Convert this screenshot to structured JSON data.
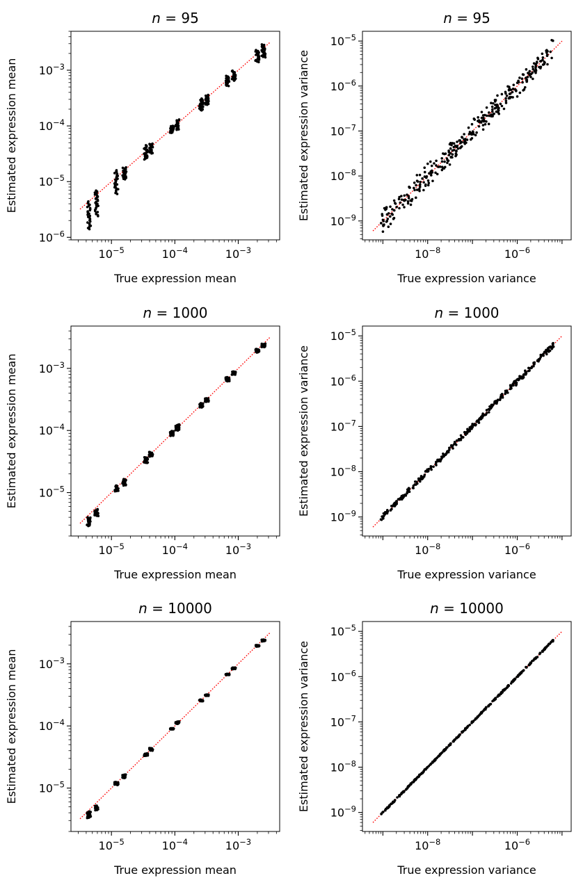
{
  "figure": {
    "titles": [
      "n = 95",
      "n = 1000",
      "n = 10000"
    ]
  },
  "chart_data": [
    {
      "type": "scatter",
      "title": "n = 95",
      "xlabel": "True expression mean",
      "ylabel": "Estimated expression mean",
      "xscale": "log",
      "yscale": "log",
      "xlim": [
        2.3e-06,
        0.0045
      ],
      "ylim": [
        9e-07,
        0.005
      ],
      "xticks": [
        "10^-5",
        "10^-4",
        "10^-3"
      ],
      "yticks": [
        "10^-6",
        "10^-5",
        "10^-4",
        "10^-3"
      ],
      "identity_line": {
        "color": "#ff0000",
        "style": "dotted",
        "from": 3.2e-06,
        "to": 0.0032
      },
      "marker_color": "#000000",
      "true_values": [
        4.4e-06,
        5.8e-06,
        1.2e-05,
        1.6e-05,
        3.5e-05,
        4.2e-05,
        9e-05,
        0.00011,
        0.00026,
        0.00032,
        0.00068,
        0.00085,
        0.002,
        0.0025
      ],
      "estimate_range": [
        [
          1.4e-06,
          4.4e-06
        ],
        [
          2.4e-06,
          6.9e-06
        ],
        [
          6e-06,
          1.6e-05
        ],
        [
          1.1e-05,
          1.8e-05
        ],
        [
          2.5e-05,
          4.5e-05
        ],
        [
          3.2e-05,
          4.8e-05
        ],
        [
          7.5e-05,
          0.0001
        ],
        [
          8.5e-05,
          0.00013
        ],
        [
          0.00019,
          0.00031
        ],
        [
          0.00024,
          0.00036
        ],
        [
          0.00052,
          0.00079
        ],
        [
          0.00065,
          0.00098
        ],
        [
          0.0014,
          0.0023
        ],
        [
          0.0017,
          0.0029
        ]
      ]
    },
    {
      "type": "scatter",
      "title": "n = 95",
      "xlabel": "True expression variance",
      "ylabel": "Estimated expression variance",
      "xscale": "log",
      "yscale": "log",
      "xlim": [
        3.5e-10,
        1.6e-05
      ],
      "ylim": [
        3.8e-10,
        1.65e-05
      ],
      "xticks": [
        "10^-8",
        "10^-6"
      ],
      "yticks": [
        "10^-9",
        "10^-8",
        "10^-7",
        "10^-6",
        "10^-5"
      ],
      "identity_line": {
        "color": "#ff0000",
        "style": "dotted",
        "from": 6e-10,
        "to": 1e-05
      },
      "marker_color": "#000000",
      "true_range": [
        9e-10,
        6.5e-06
      ],
      "log_spread": 0.28
    },
    {
      "type": "scatter",
      "title": "n = 1000",
      "xlabel": "True expression mean",
      "ylabel": "Estimated expression mean",
      "xscale": "log",
      "yscale": "log",
      "xlim": [
        2.3e-06,
        0.0045
      ],
      "ylim": [
        2e-06,
        0.0048
      ],
      "xticks": [
        "10^-5",
        "10^-4",
        "10^-3"
      ],
      "yticks": [
        "10^-5",
        "10^-4",
        "10^-3"
      ],
      "identity_line": {
        "color": "#ff0000",
        "style": "dotted",
        "from": 3.2e-06,
        "to": 0.0032
      },
      "marker_color": "#000000",
      "true_values": [
        4.4e-06,
        5.8e-06,
        1.2e-05,
        1.6e-05,
        3.5e-05,
        4.2e-05,
        9e-05,
        0.00011,
        0.00026,
        0.00032,
        0.00068,
        0.00085,
        0.002,
        0.0025
      ],
      "estimate_range": [
        [
          2.9e-06,
          4e-06
        ],
        [
          4.2e-06,
          5.4e-06
        ],
        [
          1.05e-05,
          1.3e-05
        ],
        [
          1.3e-05,
          1.65e-05
        ],
        [
          3e-05,
          3.7e-05
        ],
        [
          3.8e-05,
          4.5e-05
        ],
        [
          8.2e-05,
          9.8e-05
        ],
        [
          0.0001,
          0.000125
        ],
        [
          0.000235,
          0.000275
        ],
        [
          0.00029,
          0.00033
        ],
        [
          0.00062,
          0.00072
        ],
        [
          0.00079,
          0.00089
        ],
        [
          0.0018,
          0.00205
        ],
        [
          0.0022,
          0.0025
        ]
      ]
    },
    {
      "type": "scatter",
      "title": "n = 1000",
      "xlabel": "True expression variance",
      "ylabel": "Estimated expression variance",
      "xscale": "log",
      "yscale": "log",
      "xlim": [
        3.5e-10,
        1.6e-05
      ],
      "ylim": [
        3.8e-10,
        1.65e-05
      ],
      "xticks": [
        "10^-8",
        "10^-6"
      ],
      "yticks": [
        "10^-9",
        "10^-8",
        "10^-7",
        "10^-6",
        "10^-5"
      ],
      "identity_line": {
        "color": "#ff0000",
        "style": "dotted",
        "from": 6e-10,
        "to": 1e-05
      },
      "marker_color": "#000000",
      "true_range": [
        9e-10,
        6.5e-06
      ],
      "log_spread": 0.07
    },
    {
      "type": "scatter",
      "title": "n = 10000",
      "xlabel": "True expression mean",
      "ylabel": "Estimated expression mean",
      "xscale": "log",
      "yscale": "log",
      "xlim": [
        2.3e-06,
        0.0045
      ],
      "ylim": [
        2e-06,
        0.0048
      ],
      "xticks": [
        "10^-5",
        "10^-4",
        "10^-3"
      ],
      "yticks": [
        "10^-5",
        "10^-4",
        "10^-3"
      ],
      "identity_line": {
        "color": "#ff0000",
        "style": "dotted",
        "from": 3.2e-06,
        "to": 0.0032
      },
      "marker_color": "#000000",
      "true_values": [
        4.4e-06,
        5.8e-06,
        1.2e-05,
        1.6e-05,
        3.5e-05,
        4.2e-05,
        9e-05,
        0.00011,
        0.00026,
        0.00032,
        0.00068,
        0.00085,
        0.002,
        0.0025
      ],
      "estimate_range": [
        [
          3.3e-06,
          4.2e-06
        ],
        [
          4.4e-06,
          5.2e-06
        ],
        [
          1.12e-05,
          1.25e-05
        ],
        [
          1.45e-05,
          1.65e-05
        ],
        [
          3.3e-05,
          3.6e-05
        ],
        [
          4e-05,
          4.4e-05
        ],
        [
          8.8e-05,
          9.2e-05
        ],
        [
          0.000108,
          0.000118
        ],
        [
          0.00025,
          0.000265
        ],
        [
          0.000305,
          0.00032
        ],
        [
          0.00066,
          0.00069
        ],
        [
          0.00082,
          0.00087
        ],
        [
          0.0019,
          0.002
        ],
        [
          0.0023,
          0.00245
        ]
      ]
    },
    {
      "type": "scatter",
      "title": "n = 10000",
      "xlabel": "True expression variance",
      "ylabel": "Estimated expression variance",
      "xscale": "log",
      "yscale": "log",
      "xlim": [
        3.5e-10,
        1.6e-05
      ],
      "ylim": [
        3.8e-10,
        1.65e-05
      ],
      "xticks": [
        "10^-8",
        "10^-6"
      ],
      "yticks": [
        "10^-9",
        "10^-8",
        "10^-7",
        "10^-6",
        "10^-5"
      ],
      "identity_line": {
        "color": "#ff0000",
        "style": "dotted",
        "from": 6e-10,
        "to": 1e-05
      },
      "marker_color": "#000000",
      "true_range": [
        9e-10,
        6.5e-06
      ],
      "log_spread": 0.02
    }
  ]
}
